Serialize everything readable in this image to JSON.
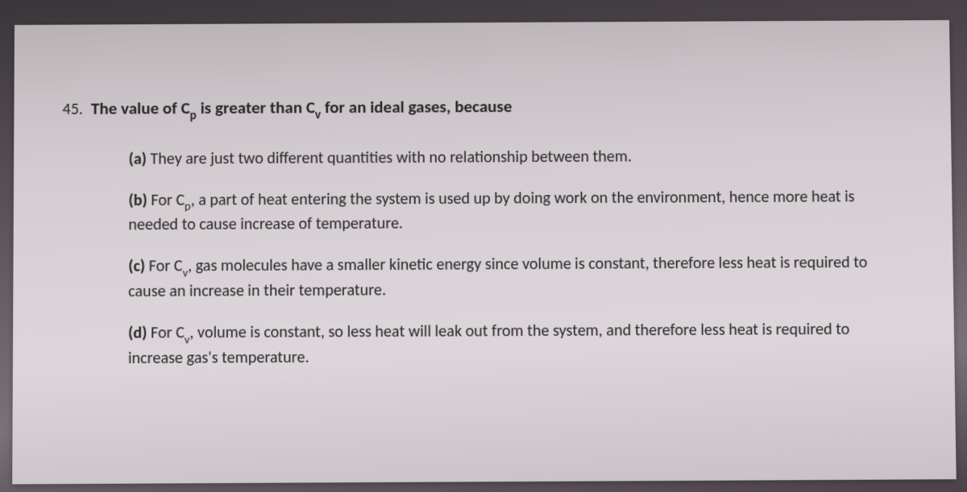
{
  "question": {
    "number": "45.",
    "stem_pre": "The value of C",
    "stem_sub1": "p",
    "stem_mid": " is greater than C",
    "stem_sub2": "v",
    "stem_post": " for an ideal gases, because"
  },
  "options": {
    "a": {
      "label": "(a)",
      "text": " They are just two different quantities with no relationship between them."
    },
    "b": {
      "label": "(b)",
      "pre": " For C",
      "sub": "p",
      "post": ", a part of heat entering the system is used up by doing work on the environment, hence more heat is needed to cause increase of temperature."
    },
    "c": {
      "label": "(c)",
      "pre": " For C",
      "sub": "v",
      "post": ", gas molecules have a smaller kinetic energy since volume is constant, therefore less heat is required to cause an increase in their temperature."
    },
    "d": {
      "label": "(d)",
      "pre": " For C",
      "sub": "v",
      "post": ", volume is constant, so less heat will leak out from the system, and therefore less heat is required to increase gas's temperature."
    }
  },
  "style": {
    "text_color": "#2a2628",
    "question_fontsize": 21,
    "option_fontsize": 20,
    "paper_bg_top": "#b8b2b5",
    "paper_bg_bottom": "#c8c2c8",
    "page_bg": "#484248"
  }
}
